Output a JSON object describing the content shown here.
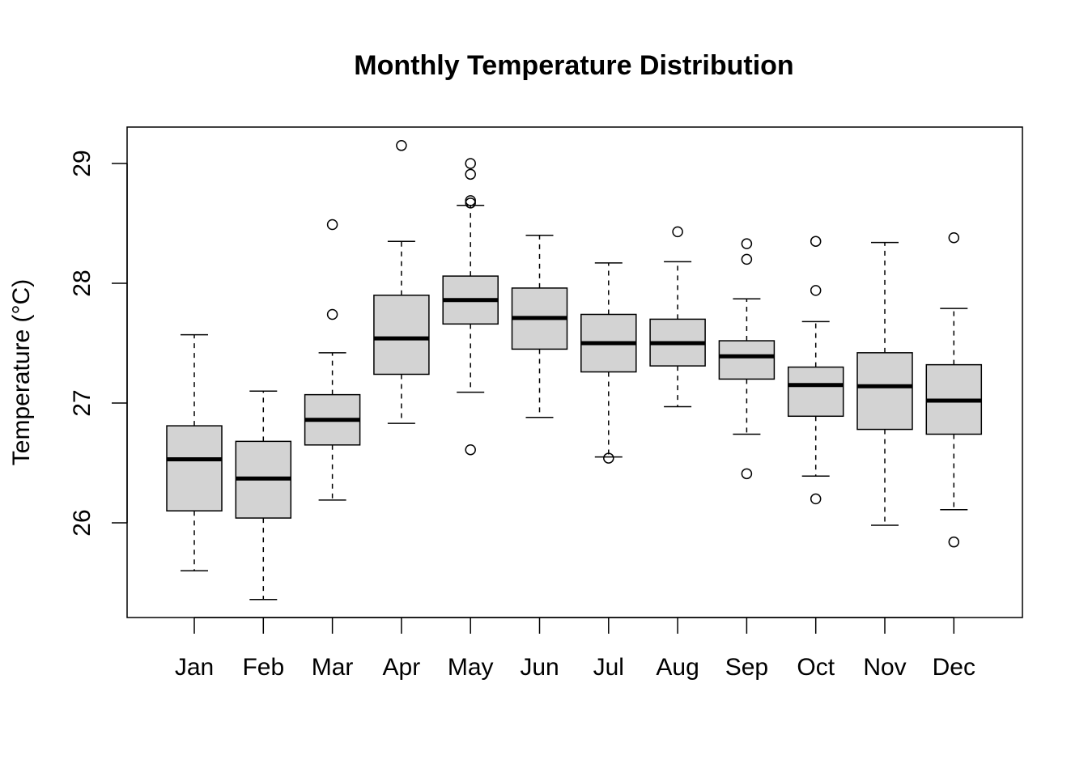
{
  "chart_data": {
    "type": "boxplot",
    "title": "Monthly Temperature Distribution",
    "xlabel": "",
    "ylabel": "Temperature (°C)",
    "ylim": [
      25.3,
      29.4
    ],
    "yticks": [
      26,
      27,
      28,
      29
    ],
    "grid": false,
    "box_fill": "#d3d3d3",
    "categories": [
      "Jan",
      "Feb",
      "Mar",
      "Apr",
      "May",
      "Jun",
      "Jul",
      "Aug",
      "Sep",
      "Oct",
      "Nov",
      "Dec"
    ],
    "boxes": [
      {
        "label": "Jan",
        "whisker_low": 25.6,
        "q1": 26.1,
        "median": 26.53,
        "q3": 26.81,
        "whisker_high": 27.57,
        "outliers": []
      },
      {
        "label": "Feb",
        "whisker_low": 25.36,
        "q1": 26.04,
        "median": 26.37,
        "q3": 26.68,
        "whisker_high": 27.1,
        "outliers": []
      },
      {
        "label": "Mar",
        "whisker_low": 26.19,
        "q1": 26.65,
        "median": 26.86,
        "q3": 27.07,
        "whisker_high": 27.42,
        "outliers": [
          27.74,
          28.49
        ]
      },
      {
        "label": "Apr",
        "whisker_low": 26.83,
        "q1": 27.24,
        "median": 27.54,
        "q3": 27.9,
        "whisker_high": 28.35,
        "outliers": [
          29.15
        ]
      },
      {
        "label": "May",
        "whisker_low": 27.09,
        "q1": 27.66,
        "median": 27.86,
        "q3": 28.06,
        "whisker_high": 28.65,
        "outliers": [
          26.61,
          28.67,
          28.69,
          28.91,
          29.0
        ]
      },
      {
        "label": "Jun",
        "whisker_low": 26.88,
        "q1": 27.45,
        "median": 27.71,
        "q3": 27.96,
        "whisker_high": 28.4,
        "outliers": []
      },
      {
        "label": "Jul",
        "whisker_low": 26.55,
        "q1": 27.26,
        "median": 27.5,
        "q3": 27.74,
        "whisker_high": 28.17,
        "outliers": [
          26.54
        ]
      },
      {
        "label": "Aug",
        "whisker_low": 26.97,
        "q1": 27.31,
        "median": 27.5,
        "q3": 27.7,
        "whisker_high": 28.18,
        "outliers": [
          28.43
        ]
      },
      {
        "label": "Sep",
        "whisker_low": 26.74,
        "q1": 27.2,
        "median": 27.39,
        "q3": 27.52,
        "whisker_high": 27.87,
        "outliers": [
          26.41,
          28.2,
          28.33
        ]
      },
      {
        "label": "Oct",
        "whisker_low": 26.39,
        "q1": 26.89,
        "median": 27.15,
        "q3": 27.3,
        "whisker_high": 27.68,
        "outliers": [
          26.2,
          27.94,
          28.35
        ]
      },
      {
        "label": "Nov",
        "whisker_low": 25.98,
        "q1": 26.78,
        "median": 27.14,
        "q3": 27.42,
        "whisker_high": 28.34,
        "outliers": []
      },
      {
        "label": "Dec",
        "whisker_low": 26.11,
        "q1": 26.74,
        "median": 27.02,
        "q3": 27.32,
        "whisker_high": 27.79,
        "outliers": [
          25.84,
          28.38
        ]
      }
    ]
  }
}
